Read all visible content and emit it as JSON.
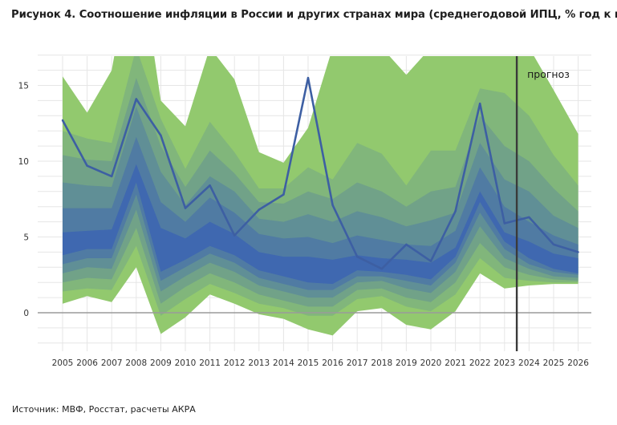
{
  "title": "Рисунок 4. Соотношение инфляции в России и других странах мира (среднегодовой ИПЦ, % год к году)",
  "source": "Источник: МВФ, Росстат, расчеты АКРА",
  "colors": {
    "outer_band": "#92c96e",
    "inner_band": "#3f68b0",
    "russia_line": "#3d5fa3",
    "forecast_line": "#3a3a3a",
    "zero_line": "#9a9a9a",
    "grid": "#e6e6e6"
  },
  "chart_data": {
    "type": "area",
    "title": "",
    "xlabel": "",
    "ylabel": "",
    "x": [
      "2005",
      "2006",
      "2007",
      "2008",
      "2009",
      "2010",
      "2011",
      "2012",
      "2013",
      "2014",
      "2015",
      "2016",
      "2017",
      "2018",
      "2019",
      "2020",
      "2021",
      "2022",
      "2023",
      "2024",
      "2025",
      "2026"
    ],
    "ylim": [
      -2.5,
      17
    ],
    "yticks": [
      0,
      5,
      10,
      15
    ],
    "grid": true,
    "distribution_bands": {
      "description_levels": "quantile bands of world inflation, from outer (light green) to inner (blue)",
      "upper": [
        [
          15.6,
          13.2,
          16.0,
          25.0,
          14.0,
          12.3,
          17.5,
          15.4,
          10.6,
          9.9,
          12.2,
          17.5,
          17.5,
          17.5,
          15.7,
          17.5,
          17.5,
          17.5,
          17.5,
          17.5,
          14.7,
          11.8
        ],
        [
          12.0,
          11.5,
          11.2,
          17.5,
          12.8,
          9.5,
          12.6,
          10.6,
          8.2,
          8.2,
          9.6,
          8.8,
          11.2,
          10.5,
          8.4,
          10.7,
          10.7,
          14.8,
          14.5,
          13.0,
          10.4,
          8.4
        ],
        [
          10.4,
          10.1,
          10.0,
          15.5,
          11.0,
          8.3,
          10.7,
          9.2,
          7.3,
          7.2,
          8.0,
          7.5,
          8.6,
          8.0,
          7.0,
          8.0,
          8.3,
          13.0,
          11.0,
          10.0,
          8.2,
          6.7
        ],
        [
          8.6,
          8.4,
          8.3,
          13.6,
          9.3,
          7.1,
          9.0,
          8.0,
          6.2,
          6.0,
          6.5,
          6.0,
          6.7,
          6.3,
          5.7,
          6.1,
          6.6,
          11.2,
          8.8,
          8.0,
          6.4,
          5.6
        ],
        [
          6.9,
          6.9,
          6.9,
          11.6,
          7.3,
          6.0,
          7.6,
          6.6,
          5.2,
          4.9,
          5.0,
          4.6,
          5.1,
          4.8,
          4.5,
          4.4,
          5.4,
          9.6,
          7.0,
          6.0,
          5.1,
          4.5
        ],
        [
          5.3,
          5.4,
          5.5,
          9.8,
          5.6,
          4.9,
          6.0,
          5.2,
          4.0,
          3.7,
          3.7,
          3.5,
          3.8,
          3.6,
          3.5,
          3.3,
          4.3,
          8.0,
          5.3,
          4.7,
          3.9,
          3.6
        ]
      ],
      "lower": [
        [
          0.6,
          1.1,
          0.7,
          3.0,
          -1.4,
          -0.3,
          1.2,
          0.6,
          -0.1,
          -0.4,
          -1.1,
          -1.5,
          0.1,
          0.3,
          -0.8,
          -1.1,
          0.1,
          2.6,
          1.6,
          1.8,
          1.9,
          1.9
        ],
        [
          1.4,
          1.6,
          1.5,
          4.4,
          -0.2,
          0.9,
          1.9,
          1.3,
          0.6,
          0.3,
          -0.2,
          -0.2,
          0.9,
          1.1,
          0.4,
          0.1,
          1.2,
          3.6,
          2.3,
          2.1,
          2.0,
          2.0
        ],
        [
          2.0,
          2.3,
          2.2,
          5.6,
          0.6,
          1.7,
          2.6,
          2.0,
          1.2,
          0.8,
          0.4,
          0.4,
          1.5,
          1.6,
          1.0,
          0.7,
          2.0,
          4.6,
          3.0,
          2.5,
          2.2,
          2.1
        ],
        [
          2.6,
          3.0,
          2.9,
          6.8,
          1.4,
          2.4,
          3.3,
          2.7,
          1.8,
          1.4,
          1.0,
          1.0,
          2.0,
          2.1,
          1.6,
          1.3,
          2.7,
          5.7,
          3.6,
          2.9,
          2.4,
          2.3
        ],
        [
          3.2,
          3.6,
          3.6,
          7.8,
          2.1,
          3.0,
          3.9,
          3.3,
          2.3,
          1.9,
          1.5,
          1.5,
          2.4,
          2.4,
          2.1,
          1.8,
          3.3,
          6.6,
          4.2,
          3.2,
          2.7,
          2.5
        ],
        [
          3.8,
          4.2,
          4.2,
          8.6,
          2.7,
          3.5,
          4.4,
          3.8,
          2.8,
          2.4,
          2.0,
          1.9,
          2.8,
          2.7,
          2.5,
          2.2,
          3.7,
          7.3,
          4.7,
          3.6,
          2.9,
          2.6
        ]
      ]
    },
    "series": [
      {
        "values": [
          12.7,
          9.7,
          9.0,
          14.1,
          11.7,
          6.9,
          8.4,
          5.1,
          6.8,
          7.8,
          15.5,
          7.1,
          3.7,
          2.9,
          4.5,
          3.4,
          6.7,
          13.8,
          5.9,
          6.3,
          4.5,
          4.0
        ]
      }
    ],
    "forecast_start": "2023.5",
    "annotations": [
      {
        "text": "прогноз"
      }
    ]
  }
}
